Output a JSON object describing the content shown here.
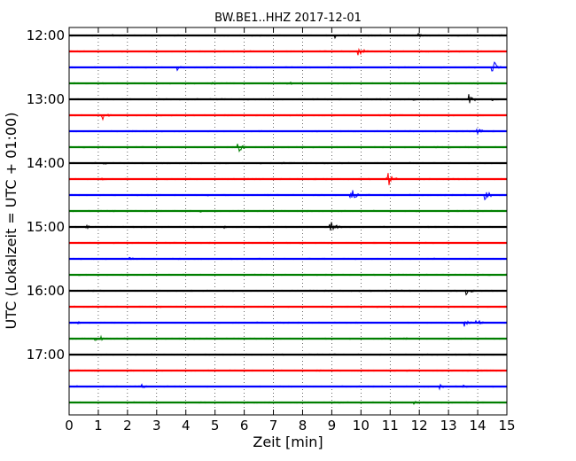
{
  "chart_data": {
    "type": "line",
    "title": "BW.BE1..HHZ 2017-12-01",
    "xlabel": "Zeit  [min]",
    "ylabel": "UTC (Lokalzeit = UTC + 01:00)",
    "xlim": [
      0,
      15
    ],
    "x_ticks": [
      "0",
      "1",
      "2",
      "3",
      "4",
      "5",
      "6",
      "7",
      "8",
      "9",
      "10",
      "11",
      "12",
      "13",
      "14",
      "15"
    ],
    "y_ticks": [
      "12:00",
      "13:00",
      "14:00",
      "15:00",
      "16:00",
      "17:00"
    ],
    "grid": "vertical dotted",
    "colors": [
      "#000000",
      "#ff0000",
      "#0000ff",
      "#007f00"
    ],
    "trace_interval_min": 15,
    "traces": [
      {
        "start": "12:00",
        "color": "#000000",
        "events": [
          {
            "t": 1.5,
            "amp": 0.15
          },
          {
            "t": 9.1,
            "amp": 0.3
          },
          {
            "t": 11.9,
            "amp": 0.35
          }
        ]
      },
      {
        "start": "12:15",
        "color": "#ff0000",
        "events": [
          {
            "t": 9.9,
            "amp": 0.5
          },
          {
            "t": 10.1,
            "amp": 0.3
          }
        ]
      },
      {
        "start": "12:30",
        "color": "#0000ff",
        "events": [
          {
            "t": 3.7,
            "amp": 0.35
          },
          {
            "t": 14.5,
            "amp": 0.9
          }
        ]
      },
      {
        "start": "12:45",
        "color": "#007f00",
        "events": [
          {
            "t": 4.9,
            "amp": 0.15
          },
          {
            "t": 7.5,
            "amp": 0.25
          }
        ]
      },
      {
        "start": "13:00",
        "color": "#000000",
        "events": [
          {
            "t": 13.7,
            "amp": 0.6
          },
          {
            "t": 14.5,
            "amp": 0.2
          },
          {
            "t": 11.8,
            "amp": 0.2
          }
        ]
      },
      {
        "start": "13:15",
        "color": "#ff0000",
        "events": [
          {
            "t": 1.15,
            "amp": 0.55
          }
        ]
      },
      {
        "start": "13:30",
        "color": "#0000ff",
        "events": [
          {
            "t": 13.95,
            "amp": 0.5
          }
        ]
      },
      {
        "start": "13:45",
        "color": "#007f00",
        "events": [
          {
            "t": 5.75,
            "amp": 0.8
          }
        ]
      },
      {
        "start": "14:00",
        "color": "#000000",
        "events": [
          {
            "t": 1.2,
            "amp": 0.15
          },
          {
            "t": 7.3,
            "amp": 0.15
          }
        ]
      },
      {
        "start": "14:15",
        "color": "#ff0000",
        "events": [
          {
            "t": 1.1,
            "amp": 0.25
          },
          {
            "t": 10.9,
            "amp": 1.0
          }
        ]
      },
      {
        "start": "14:30",
        "color": "#0000ff",
        "events": [
          {
            "t": 4.7,
            "amp": 0.2
          },
          {
            "t": 9.65,
            "amp": 0.8
          },
          {
            "t": 14.25,
            "amp": 0.7
          }
        ]
      },
      {
        "start": "14:45",
        "color": "#007f00",
        "events": [
          {
            "t": 2.5,
            "amp": 0.15
          },
          {
            "t": 4.5,
            "amp": 0.15
          }
        ]
      },
      {
        "start": "15:00",
        "color": "#000000",
        "events": [
          {
            "t": 0.6,
            "amp": 0.2
          },
          {
            "t": 5.3,
            "amp": 0.15
          },
          {
            "t": 8.95,
            "amp": 0.9
          }
        ]
      },
      {
        "start": "15:15",
        "color": "#ff0000",
        "events": []
      },
      {
        "start": "15:30",
        "color": "#0000ff",
        "events": [
          {
            "t": 2.05,
            "amp": 0.25
          },
          {
            "t": 4.8,
            "amp": 0.1
          },
          {
            "t": 12.5,
            "amp": 0.1
          }
        ]
      },
      {
        "start": "15:45",
        "color": "#007f00",
        "events": [
          {
            "t": 1.2,
            "amp": 0.1
          }
        ]
      },
      {
        "start": "16:00",
        "color": "#000000",
        "events": [
          {
            "t": 13.6,
            "amp": 0.55
          }
        ]
      },
      {
        "start": "16:15",
        "color": "#ff0000",
        "events": [
          {
            "t": 3.1,
            "amp": 0.1
          }
        ]
      },
      {
        "start": "16:30",
        "color": "#0000ff",
        "events": [
          {
            "t": 0.3,
            "amp": 0.15
          },
          {
            "t": 13.55,
            "amp": 0.55
          },
          {
            "t": 13.95,
            "amp": 0.5
          }
        ]
      },
      {
        "start": "16:45",
        "color": "#007f00",
        "events": [
          {
            "t": 0.9,
            "amp": 0.9
          },
          {
            "t": 11.5,
            "amp": 0.15
          }
        ]
      },
      {
        "start": "17:00",
        "color": "#000000",
        "events": [
          {
            "t": 4.0,
            "amp": 0.15
          }
        ]
      },
      {
        "start": "17:15",
        "color": "#ff0000",
        "events": []
      },
      {
        "start": "17:30",
        "color": "#0000ff",
        "events": [
          {
            "t": 0.2,
            "amp": 0.15
          },
          {
            "t": 2.5,
            "amp": 0.3
          },
          {
            "t": 12.7,
            "amp": 0.3
          },
          {
            "t": 13.5,
            "amp": 0.25
          }
        ]
      },
      {
        "start": "17:45",
        "color": "#007f00",
        "events": [
          {
            "t": 11.8,
            "amp": 0.2
          }
        ]
      }
    ]
  }
}
